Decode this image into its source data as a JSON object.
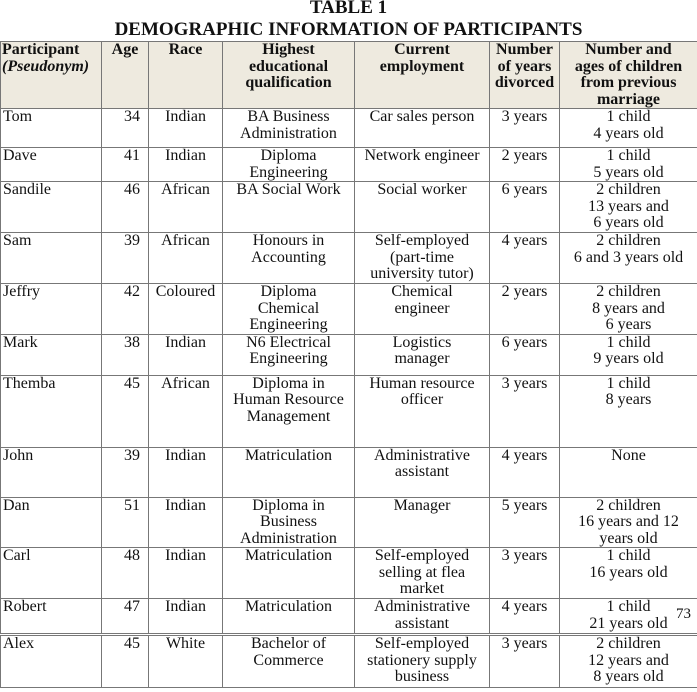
{
  "title": "TABLE 1",
  "subtitle": "DEMOGRAPHIC INFORMATION OF PARTICIPANTS",
  "page_number": "73",
  "table": {
    "headers": [
      {
        "line1": "Participant",
        "line2": "(Pseudonym)"
      },
      {
        "text": "Age"
      },
      {
        "text": "Race"
      },
      {
        "text": "Highest\neducational\nqualification"
      },
      {
        "text": "Current\nemployment"
      },
      {
        "text": "Number\nof years\ndivorced"
      },
      {
        "text": "Number and\nages of children\nfrom previous\nmarriage"
      }
    ],
    "rows": [
      {
        "name": "Tom",
        "age": "34",
        "race": "Indian",
        "qualification": "BA Business\nAdministration",
        "employment": "Car sales person",
        "divorced": "3 years",
        "children": "1 child\n4 years old"
      },
      {
        "name": " Dave",
        "age": "41",
        "race": "Indian",
        "qualification": "Diploma\nEngineering",
        "employment": "Network engineer",
        "divorced": "2 years",
        "children": "1 child\n5 years old"
      },
      {
        "name": "Sandile",
        "age": "46",
        "race": "African",
        "qualification": "BA Social Work",
        "employment": "Social worker",
        "divorced": "6 years",
        "children": "2 children\n13 years and\n6 years old"
      },
      {
        "name": "Sam",
        "age": "39",
        "race": "African",
        "qualification": "Honours in\nAccounting",
        "employment": "Self-employed\n(part-time\nuniversity tutor)",
        "divorced": "4 years",
        "children": "2 children\n6 and 3 years old"
      },
      {
        "name": "Jeffry",
        "age": "42",
        "race": "Coloured",
        "qualification": "Diploma\nChemical\nEngineering",
        "employment": "Chemical\nengineer",
        "divorced": "2 years",
        "children": "2 children\n8 years and\n6 years"
      },
      {
        "name": "Mark",
        "age": "38",
        "race": "Indian",
        "qualification": "N6 Electrical\nEngineering",
        "employment": "Logistics\nmanager",
        "divorced": "6 years",
        "children": "1 child\n9 years old"
      },
      {
        "name": "Themba",
        "age": "45",
        "race": "African",
        "qualification": "Diploma in\nHuman Resource\nManagement",
        "employment": "Human resource\nofficer",
        "divorced": "3 years",
        "children": "1 child\n8 years"
      },
      {
        "name": "John",
        "age": "39",
        "race": "Indian",
        "qualification": "Matriculation",
        "employment": "Administrative\nassistant",
        "divorced": "4 years",
        "children": "None"
      },
      {
        "name": "Dan",
        "age": "51",
        "race": "Indian",
        "qualification": "Diploma in\nBusiness\nAdministration",
        "employment": "Manager",
        "divorced": "5 years",
        "children": "2 children\n16 years and 12\nyears old"
      },
      {
        "name": "Carl",
        "age": "48",
        "race": "Indian",
        "qualification": "Matriculation",
        "employment": "Self-employed\nselling at flea\nmarket",
        "divorced": "3 years",
        "children": "1 child\n16 years old"
      },
      {
        "name": "Robert",
        "age": "47",
        "race": "Indian",
        "qualification": "Matriculation",
        "employment": "Administrative\nassistant",
        "divorced": "4 years",
        "children": "1 child\n21 years old"
      },
      {
        "name": "Alex",
        "age": "45",
        "race": "White",
        "qualification": "Bachelor of\nCommerce",
        "employment": "Self-employed\nstationery supply\nbusiness",
        "divorced": "3 years",
        "children": "2 children\n12 years and\n8 years old"
      }
    ]
  }
}
